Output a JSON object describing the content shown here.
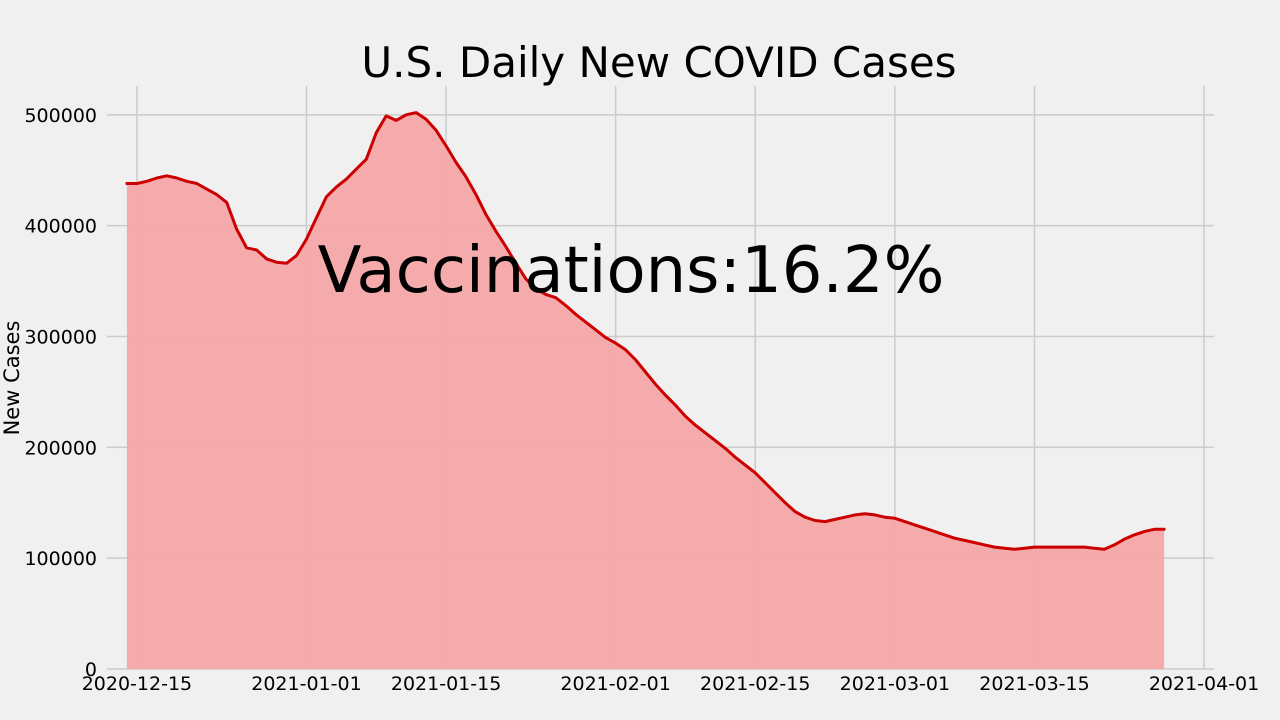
{
  "chart_data": {
    "type": "area",
    "title": "U.S. Daily New COVID Cases",
    "xlabel": "",
    "ylabel": "New Cases",
    "annotation": "Vaccinations:16.2%",
    "x_tick_labels": [
      "2020-12-15",
      "2021-01-01",
      "2021-01-15",
      "2021-02-01",
      "2021-02-15",
      "2021-03-01",
      "2021-03-15",
      "2021-04-01"
    ],
    "y_tick_labels": [
      "0",
      "100000",
      "200000",
      "300000",
      "400000",
      "500000"
    ],
    "y_ticks": [
      0,
      100000,
      200000,
      300000,
      400000,
      500000
    ],
    "xlim": [
      "2020-12-12",
      "2021-04-02"
    ],
    "ylim": [
      0,
      526000
    ],
    "grid": true,
    "line_color": "#cc0000",
    "fill_color": "#f4a7a7",
    "background": "#f0f0f0",
    "grid_color": "#cbcbcb",
    "series": [
      {
        "x": [
          "2020-12-14",
          "2020-12-15",
          "2020-12-16",
          "2020-12-17",
          "2020-12-18",
          "2020-12-19",
          "2020-12-20",
          "2020-12-21",
          "2020-12-22",
          "2020-12-23",
          "2020-12-24",
          "2020-12-25",
          "2020-12-26",
          "2020-12-27",
          "2020-12-28",
          "2020-12-29",
          "2020-12-30",
          "2020-12-31",
          "2021-01-01",
          "2021-01-02",
          "2021-01-03",
          "2021-01-04",
          "2021-01-05",
          "2021-01-06",
          "2021-01-07",
          "2021-01-08",
          "2021-01-09",
          "2021-01-10",
          "2021-01-11",
          "2021-01-12",
          "2021-01-13",
          "2021-01-14",
          "2021-01-15",
          "2021-01-16",
          "2021-01-17",
          "2021-01-18",
          "2021-01-19",
          "2021-01-20",
          "2021-01-21",
          "2021-01-22",
          "2021-01-23",
          "2021-01-24",
          "2021-01-25",
          "2021-01-26",
          "2021-01-27",
          "2021-01-28",
          "2021-01-29",
          "2021-01-30",
          "2021-01-31",
          "2021-02-01",
          "2021-02-02",
          "2021-02-03",
          "2021-02-04",
          "2021-02-05",
          "2021-02-06",
          "2021-02-07",
          "2021-02-08",
          "2021-02-09",
          "2021-02-10",
          "2021-02-11",
          "2021-02-12",
          "2021-02-13",
          "2021-02-14",
          "2021-02-15",
          "2021-02-16",
          "2021-02-17",
          "2021-02-18",
          "2021-02-19",
          "2021-02-20",
          "2021-02-21",
          "2021-02-22",
          "2021-02-23",
          "2021-02-24",
          "2021-02-25",
          "2021-02-26",
          "2021-02-27",
          "2021-02-28",
          "2021-03-01",
          "2021-03-02",
          "2021-03-03",
          "2021-03-04",
          "2021-03-05",
          "2021-03-06",
          "2021-03-07",
          "2021-03-08",
          "2021-03-09",
          "2021-03-10",
          "2021-03-11",
          "2021-03-12",
          "2021-03-13",
          "2021-03-14",
          "2021-03-15",
          "2021-03-16",
          "2021-03-17",
          "2021-03-18",
          "2021-03-19",
          "2021-03-20",
          "2021-03-21",
          "2021-03-22",
          "2021-03-23",
          "2021-03-24",
          "2021-03-25",
          "2021-03-26",
          "2021-03-27",
          "2021-03-28"
        ],
        "y": [
          438000,
          438000,
          440000,
          443000,
          445000,
          443000,
          440000,
          438000,
          433000,
          428000,
          421000,
          397000,
          380000,
          378000,
          370000,
          367000,
          366000,
          373000,
          388000,
          407000,
          426000,
          435000,
          442000,
          451000,
          460000,
          484000,
          499000,
          495000,
          500000,
          502000,
          496000,
          486000,
          472000,
          457000,
          444000,
          428000,
          410000,
          395000,
          381000,
          366000,
          352000,
          343000,
          338000,
          335000,
          328000,
          320000,
          313000,
          306000,
          299000,
          294000,
          288000,
          279000,
          268000,
          257000,
          247000,
          238000,
          228000,
          220000,
          213000,
          206000,
          199000,
          191000,
          184000,
          177000,
          168000,
          159000,
          150000,
          142000,
          137000,
          134000,
          133000,
          135000,
          137000,
          139000,
          140000,
          139000,
          137000,
          136000,
          133000,
          130000,
          127000,
          124000,
          121000,
          118000,
          116000,
          114000,
          112000,
          110000,
          109000,
          108000,
          109000,
          110000,
          110000,
          110000,
          110000,
          110000,
          110000,
          109000,
          108000,
          112000,
          117000,
          121000,
          124000,
          126000,
          126000
        ]
      }
    ]
  }
}
